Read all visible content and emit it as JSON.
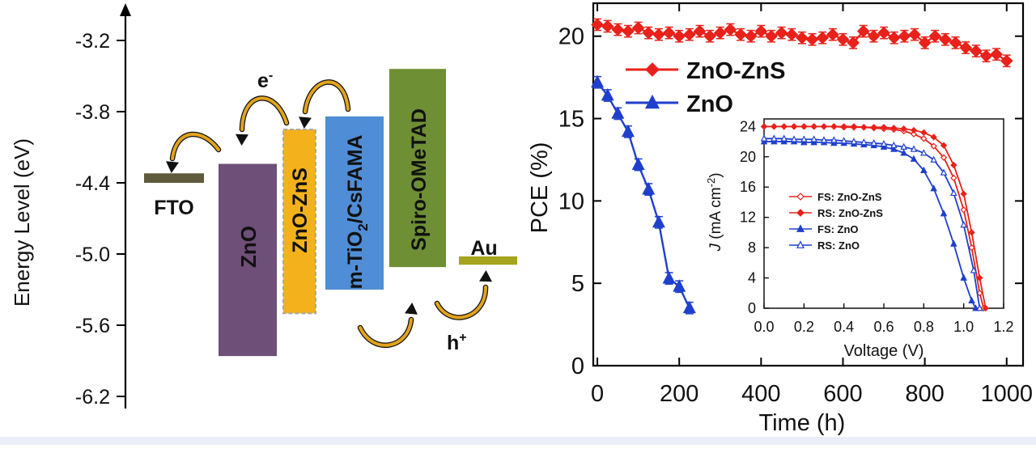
{
  "colors": {
    "red": "#e8211a",
    "blue": "#1f3fcc",
    "fto": "#605a3c",
    "zno": "#6e4f78",
    "zns": "#f3b21c",
    "tio2": "#4f8ed6",
    "spiro": "#6e8f34",
    "au": "#a5a41e",
    "arrow": "#e2a41c"
  },
  "chart_data": [
    {
      "type": "diagram",
      "ylabel": "Energy Level (eV)",
      "yticks": [
        -3.2,
        -3.8,
        -4.4,
        -5.0,
        -5.6,
        -6.2
      ],
      "ylim": [
        -6.2,
        -2.9
      ],
      "layers": [
        {
          "label": "FTO",
          "top": -4.32,
          "bottom": -4.4,
          "color": "fto"
        },
        {
          "label": "ZnO",
          "top": -4.24,
          "bottom": -5.86,
          "color": "zno"
        },
        {
          "label": "ZnO-ZnS",
          "top": -3.95,
          "bottom": -5.5,
          "color": "zns"
        },
        {
          "label": "m-TiO2/CsFAMA",
          "label_main": "m-TiO",
          "label_sub": "2",
          "label_tail": "/CsFAMA",
          "top": -3.84,
          "bottom": -5.3,
          "color": "tio2"
        },
        {
          "label": "Spiro-OMeTAD",
          "top": -3.44,
          "bottom": -5.11,
          "color": "spiro"
        },
        {
          "label": "Au",
          "top": -5.02,
          "bottom": -5.09,
          "color": "au"
        }
      ],
      "annotations": {
        "electron": "e",
        "electron_sup": "-",
        "hole": "h",
        "hole_sup": "+"
      }
    },
    {
      "type": "line",
      "xlabel": "Time (h)",
      "ylabel": "PCE (%)",
      "xlim": [
        -10,
        1040
      ],
      "ylim": [
        0,
        22
      ],
      "xticks": [
        0,
        200,
        400,
        600,
        800,
        1000
      ],
      "yticks": [
        0,
        5,
        10,
        15,
        20
      ],
      "legend_position": "upper-left",
      "series": [
        {
          "name": "ZnO-ZnS",
          "color": "red",
          "marker": "diamond",
          "x": [
            0,
            25,
            50,
            75,
            100,
            125,
            150,
            175,
            200,
            225,
            250,
            275,
            300,
            325,
            350,
            375,
            400,
            425,
            450,
            475,
            500,
            525,
            550,
            575,
            600,
            625,
            650,
            675,
            700,
            725,
            750,
            775,
            800,
            825,
            850,
            875,
            900,
            925,
            950,
            975,
            1000
          ],
          "y": [
            20.7,
            20.6,
            20.4,
            20.3,
            20.5,
            20.2,
            20.1,
            20.2,
            20.0,
            20.1,
            20.3,
            20.0,
            20.2,
            20.4,
            20.1,
            20.0,
            20.3,
            20.0,
            20.2,
            20.1,
            19.9,
            19.8,
            19.9,
            20.1,
            19.8,
            19.6,
            20.3,
            20.0,
            20.2,
            19.9,
            20.0,
            20.1,
            19.6,
            20.0,
            19.8,
            19.6,
            19.3,
            19.1,
            18.8,
            18.9,
            18.5
          ],
          "error": 0.35
        },
        {
          "name": "ZnO",
          "color": "blue",
          "marker": "triangle",
          "x": [
            0,
            25,
            50,
            75,
            100,
            125,
            150,
            175,
            200,
            225
          ],
          "y": [
            17.2,
            16.4,
            15.3,
            14.2,
            12.2,
            10.7,
            8.7,
            5.3,
            4.8,
            3.5
          ],
          "error": 0.35
        }
      ]
    },
    {
      "type": "line",
      "xlabel": "Voltage (V)",
      "ylabel_italic": "J",
      "ylabel_rest": " (mA cm",
      "ylabel_sup": "-2",
      "ylabel_end": ")",
      "xlim": [
        0,
        1.2
      ],
      "ylim": [
        0,
        25
      ],
      "xticks": [
        "0.0",
        "0.2",
        "0.4",
        "0.6",
        "0.8",
        "1.0",
        "1.2"
      ],
      "yticks": [
        0,
        4,
        8,
        12,
        16,
        20,
        24
      ],
      "legend_position": "center-left",
      "series": [
        {
          "name": "FS: ZnO-ZnS",
          "color": "red",
          "marker": "open-diamond",
          "x": [
            0,
            0.05,
            0.1,
            0.15,
            0.2,
            0.25,
            0.3,
            0.35,
            0.4,
            0.45,
            0.5,
            0.55,
            0.6,
            0.65,
            0.7,
            0.75,
            0.8,
            0.85,
            0.9,
            0.95,
            1.0,
            1.04,
            1.08,
            1.1
          ],
          "y": [
            24.0,
            24.0,
            24.0,
            24.0,
            24.0,
            24.0,
            24.0,
            24.0,
            23.9,
            23.9,
            23.9,
            23.8,
            23.7,
            23.6,
            23.4,
            23.0,
            22.4,
            21.4,
            19.9,
            17.2,
            13.0,
            8.0,
            2.0,
            0.0
          ]
        },
        {
          "name": "RS: ZnO-ZnS",
          "color": "red",
          "marker": "diamond",
          "x": [
            0,
            0.05,
            0.1,
            0.15,
            0.2,
            0.25,
            0.3,
            0.35,
            0.4,
            0.45,
            0.5,
            0.55,
            0.6,
            0.65,
            0.7,
            0.75,
            0.8,
            0.85,
            0.9,
            0.95,
            1.0,
            1.04,
            1.08,
            1.11
          ],
          "y": [
            24.0,
            24.0,
            24.0,
            24.0,
            24.0,
            24.0,
            24.0,
            24.0,
            24.0,
            24.0,
            23.9,
            23.9,
            23.9,
            23.8,
            23.7,
            23.5,
            23.2,
            22.6,
            21.5,
            18.9,
            15.1,
            10.0,
            4.0,
            0.0
          ]
        },
        {
          "name": "FS: ZnO",
          "color": "blue",
          "marker": "triangle",
          "x": [
            0,
            0.05,
            0.1,
            0.15,
            0.2,
            0.25,
            0.3,
            0.35,
            0.4,
            0.45,
            0.5,
            0.55,
            0.6,
            0.65,
            0.7,
            0.75,
            0.8,
            0.85,
            0.9,
            0.95,
            1.0,
            1.04,
            1.06
          ],
          "y": [
            22.0,
            22.0,
            22.0,
            22.0,
            21.9,
            21.9,
            21.9,
            21.8,
            21.8,
            21.7,
            21.6,
            21.5,
            21.3,
            21.0,
            20.5,
            19.7,
            18.2,
            15.8,
            12.5,
            8.5,
            4.0,
            1.0,
            0.0
          ]
        },
        {
          "name": "RS: ZnO",
          "color": "blue",
          "marker": "open-triangle",
          "x": [
            0,
            0.05,
            0.1,
            0.15,
            0.2,
            0.25,
            0.3,
            0.35,
            0.4,
            0.45,
            0.5,
            0.55,
            0.6,
            0.65,
            0.7,
            0.75,
            0.8,
            0.85,
            0.9,
            0.95,
            1.0,
            1.05,
            1.08
          ],
          "y": [
            22.4,
            22.4,
            22.4,
            22.3,
            22.3,
            22.3,
            22.2,
            22.2,
            22.1,
            22.0,
            21.9,
            21.8,
            21.7,
            21.5,
            21.3,
            21.0,
            20.5,
            19.6,
            17.9,
            15.2,
            11.0,
            5.0,
            0.0
          ]
        }
      ]
    }
  ]
}
